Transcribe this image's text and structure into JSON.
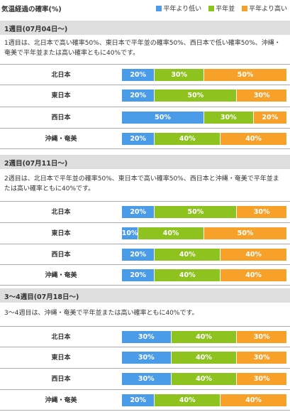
{
  "page_title": "気温経過の確率(%)",
  "legend": [
    {
      "label": "平年より低い",
      "color": "#4a9ce9"
    },
    {
      "label": "平年並",
      "color": "#8dc21f"
    },
    {
      "label": "平年より高い",
      "color": "#f7a12a"
    }
  ],
  "weeks": [
    {
      "header": "1週目(07月04日～)",
      "description": "1週目は、北日本で高い確率50%、東日本で平年並の確率50%、西日本で低い確率50%、沖縄・奄美で平年並または高い確率ともに40%です。"
    },
    {
      "header": "2週目(07月11日～)",
      "description": "2週目は、北日本で平年並の確率50%、東日本で高い確率50%、西日本と沖縄・奄美で平年並または高い確率ともに40%です。"
    },
    {
      "header": "3～4週目(07月18日～)",
      "description": "3～4週目は、沖縄・奄美で平年並または高い確率ともに40%です。"
    }
  ],
  "chart_data": [
    {
      "type": "bar",
      "stacked": true,
      "orientation": "horizontal",
      "title": "1週目(07月04日～)",
      "categories": [
        "北日本",
        "東日本",
        "西日本",
        "沖縄・奄美"
      ],
      "series": [
        {
          "name": "平年より低い",
          "color": "#4a9ce9",
          "values": [
            20,
            20,
            50,
            20
          ]
        },
        {
          "name": "平年並",
          "color": "#8dc21f",
          "values": [
            30,
            50,
            30,
            40
          ]
        },
        {
          "name": "平年より高い",
          "color": "#f7a12a",
          "values": [
            50,
            30,
            20,
            40
          ]
        }
      ],
      "value_labels": [
        [
          "20%",
          "30%",
          "50%"
        ],
        [
          "20%",
          "50%",
          "30%"
        ],
        [
          "50%",
          "30%",
          "20%"
        ],
        [
          "20%",
          "40%",
          "40%"
        ]
      ],
      "xlim": [
        0,
        100
      ]
    },
    {
      "type": "bar",
      "stacked": true,
      "orientation": "horizontal",
      "title": "2週目(07月11日～)",
      "categories": [
        "北日本",
        "東日本",
        "西日本",
        "沖縄・奄美"
      ],
      "series": [
        {
          "name": "平年より低い",
          "color": "#4a9ce9",
          "values": [
            20,
            10,
            20,
            20
          ]
        },
        {
          "name": "平年並",
          "color": "#8dc21f",
          "values": [
            50,
            40,
            40,
            40
          ]
        },
        {
          "name": "平年より高い",
          "color": "#f7a12a",
          "values": [
            30,
            50,
            40,
            40
          ]
        }
      ],
      "value_labels": [
        [
          "20%",
          "50%",
          "30%"
        ],
        [
          "10%",
          "40%",
          "50%"
        ],
        [
          "20%",
          "40%",
          "40%"
        ],
        [
          "20%",
          "40%",
          "40%"
        ]
      ],
      "xlim": [
        0,
        100
      ]
    },
    {
      "type": "bar",
      "stacked": true,
      "orientation": "horizontal",
      "title": "3～4週目(07月18日～)",
      "categories": [
        "北日本",
        "東日本",
        "西日本",
        "沖縄・奄美"
      ],
      "series": [
        {
          "name": "平年より低い",
          "color": "#4a9ce9",
          "values": [
            30,
            30,
            30,
            20
          ]
        },
        {
          "name": "平年並",
          "color": "#8dc21f",
          "values": [
            40,
            40,
            40,
            40
          ]
        },
        {
          "name": "平年より高い",
          "color": "#f7a12a",
          "values": [
            30,
            30,
            30,
            40
          ]
        }
      ],
      "value_labels": [
        [
          "30%",
          "40%",
          "30%"
        ],
        [
          "30%",
          "40%",
          "30%"
        ],
        [
          "30%",
          "40%",
          "30%"
        ],
        [
          "20%",
          "40%",
          "40%"
        ]
      ],
      "xlim": [
        0,
        100
      ]
    }
  ]
}
